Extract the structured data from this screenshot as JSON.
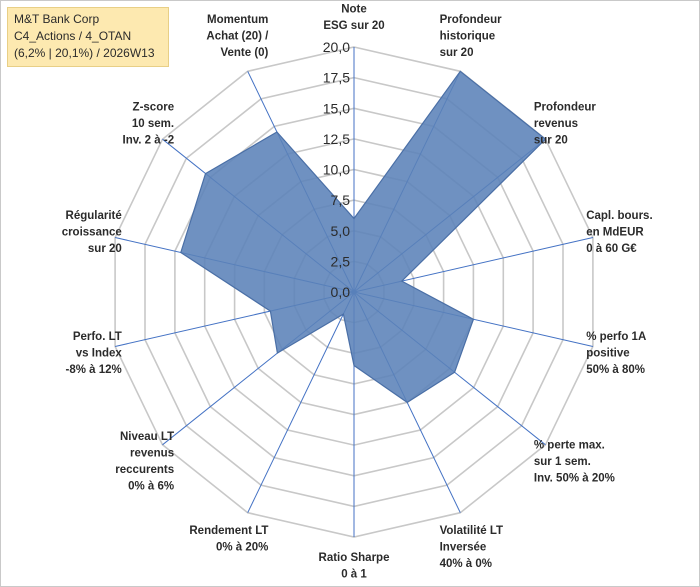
{
  "info": {
    "company": "M&T Bank Corp",
    "category": "C4_Actions / 4_OTAN",
    "stats": "(6,2% | 20,1%) / 2026W13"
  },
  "colors": {
    "fill": "#5b82b8",
    "stroke": "#4a6fa6",
    "grid": "#c8c8c8",
    "axis": "#4472c4"
  },
  "chart_data": {
    "type": "radar",
    "rmax": 20,
    "ticks": [
      "0,0",
      "2,5",
      "5,0",
      "7,5",
      "10,0",
      "12,5",
      "15,0",
      "17,5",
      "20,0"
    ],
    "tick_values": [
      0,
      2.5,
      5,
      7.5,
      10,
      12.5,
      15,
      17.5,
      20
    ],
    "axes": [
      {
        "label": [
          "Note",
          "ESG sur 20"
        ],
        "value": 6.0
      },
      {
        "label": [
          "Profondeur",
          "historique",
          "sur 20"
        ],
        "value": 20.0
      },
      {
        "label": [
          "Profondeur",
          "revenus",
          "sur 20"
        ],
        "value": 20.0
      },
      {
        "label": [
          "Capl. bours.",
          "en MdEUR",
          "0 à 60 G€"
        ],
        "value": 4.0
      },
      {
        "label": [
          "% perfo 1A",
          "positive",
          "50% à 80%"
        ],
        "value": 10.0
      },
      {
        "label": [
          "% perte max.",
          "sur 1 sem.",
          "Inv. 50% à 20%"
        ],
        "value": 10.5
      },
      {
        "label": [
          "Volatilité LT",
          "Inversée",
          "40% à 0%"
        ],
        "value": 10.0
      },
      {
        "label": [
          "Ratio Sharpe",
          "0 à 1"
        ],
        "value": 6.0
      },
      {
        "label": [
          "Rendement LT",
          "0% à 20%"
        ],
        "value": 2.0
      },
      {
        "label": [
          "Niveau LT",
          "revenus",
          "reccurents",
          "0% à 6%"
        ],
        "value": 8.0
      },
      {
        "label": [
          "Perfo. LT",
          "vs Index",
          "-8% à 12%"
        ],
        "value": 7.0
      },
      {
        "label": [
          "Régularité",
          "croissance",
          "sur 20"
        ],
        "value": 14.5
      },
      {
        "label": [
          "Z-score",
          "10 sem.",
          "Inv. 2 à -2"
        ],
        "value": 15.5
      },
      {
        "label": [
          "Momentum",
          "Achat (20) /",
          "Vente (0)"
        ],
        "value": 14.5
      }
    ]
  }
}
